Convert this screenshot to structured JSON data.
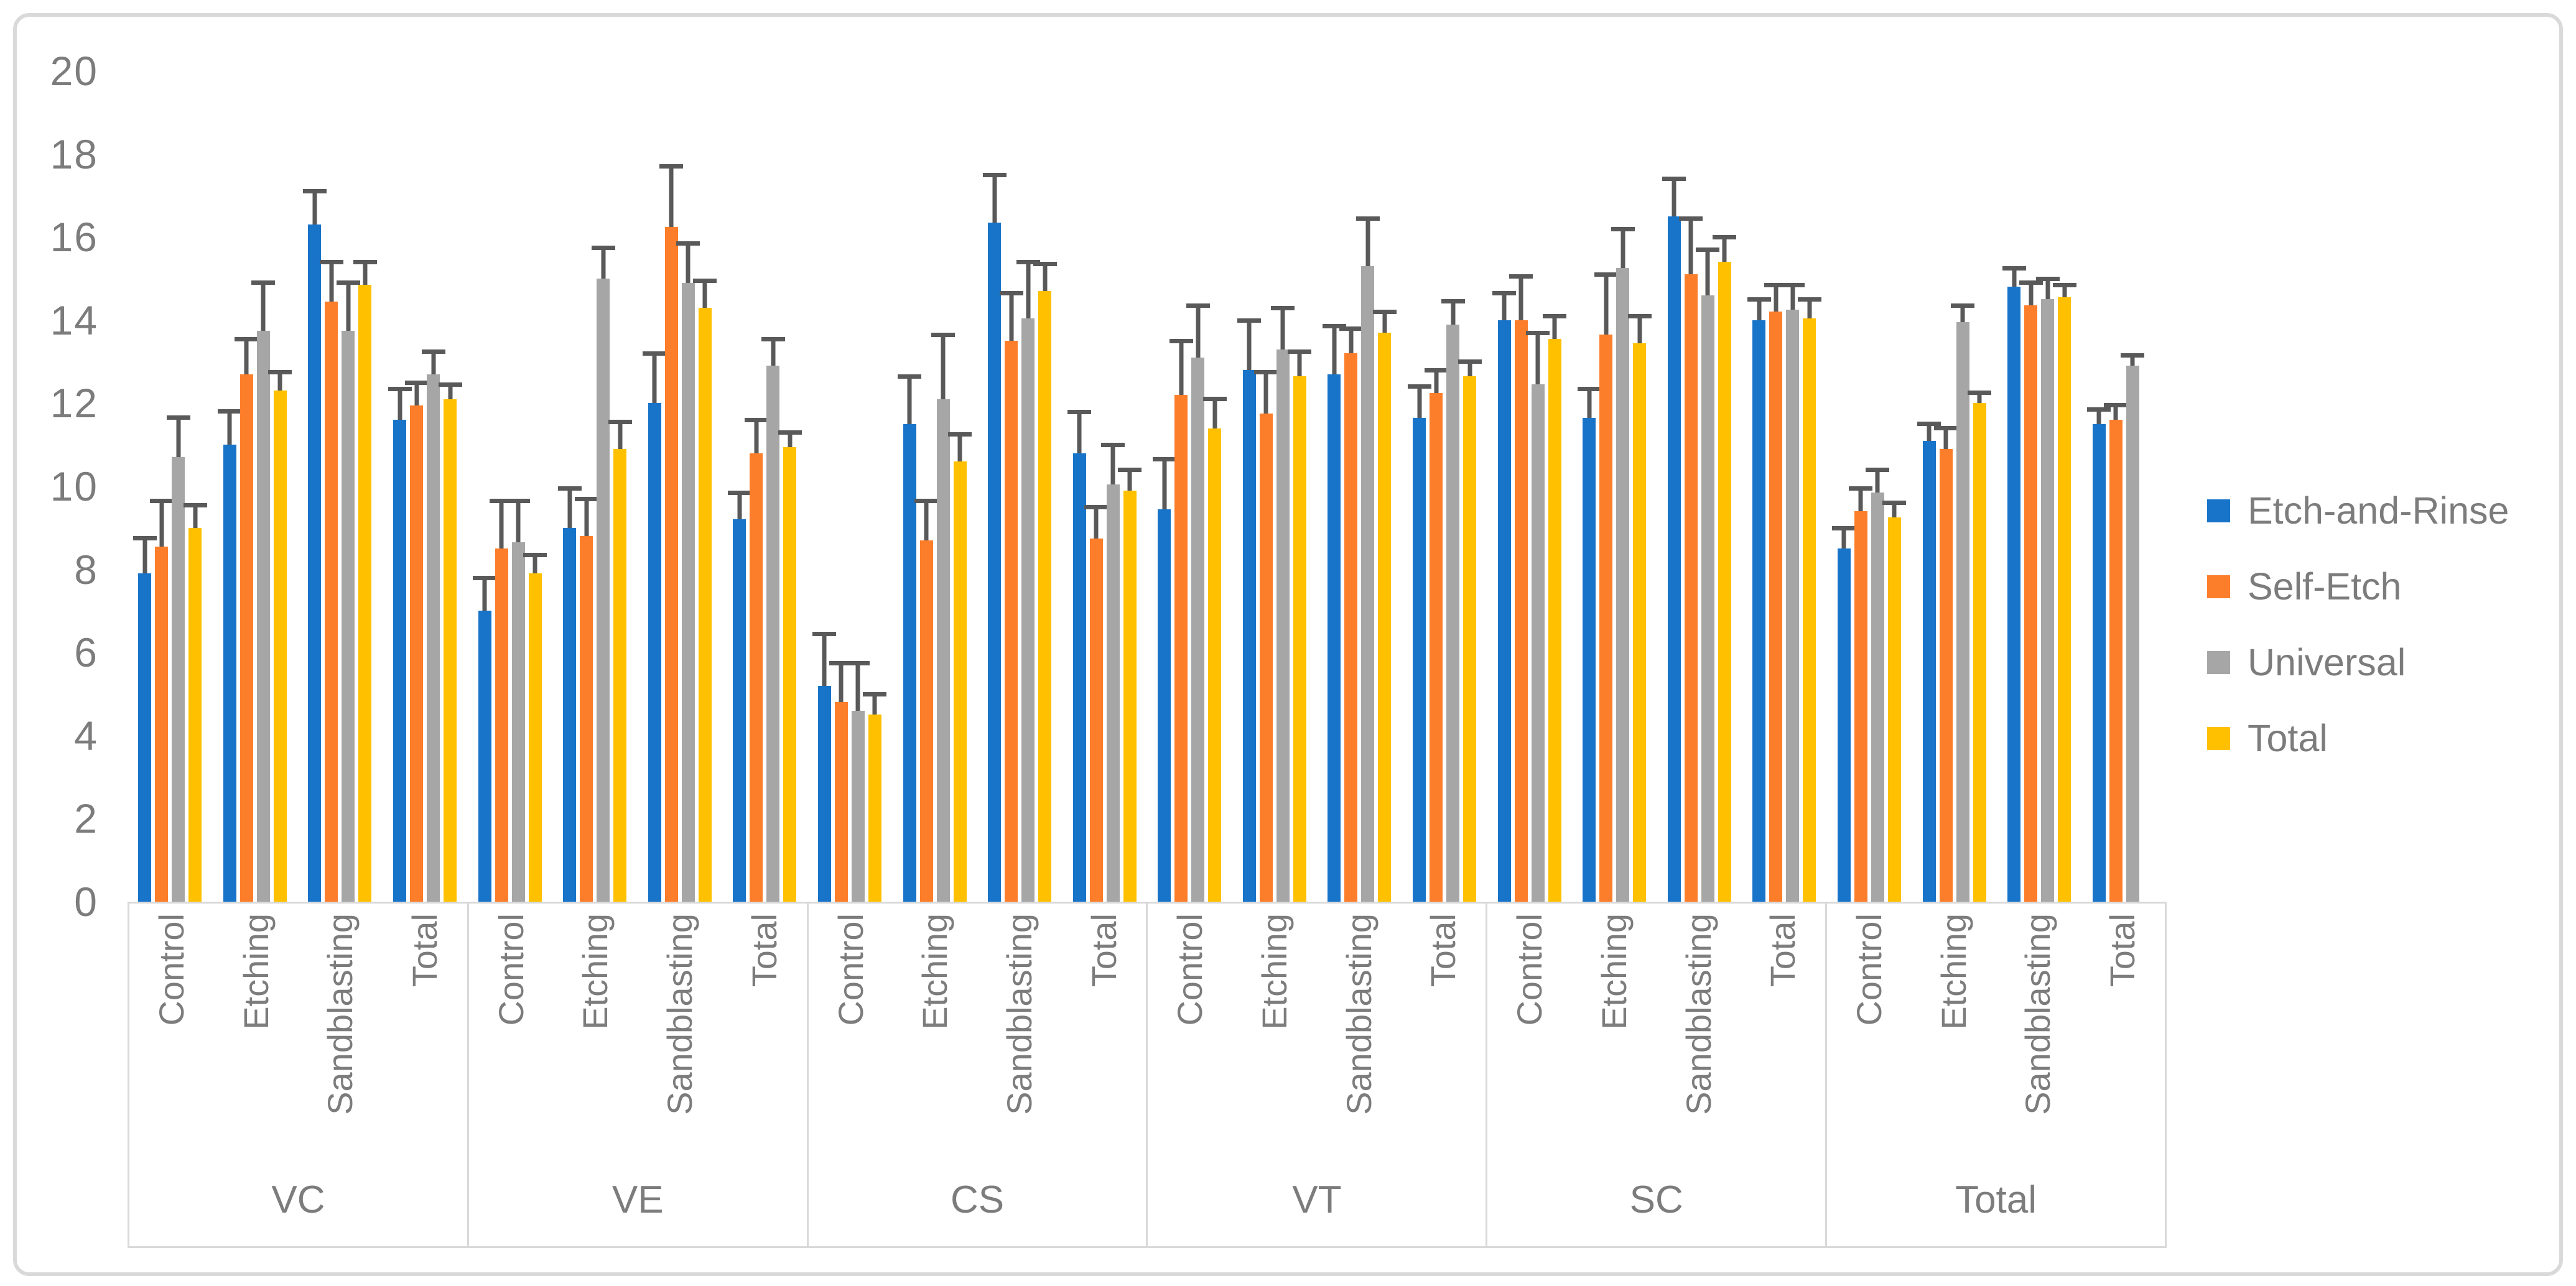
{
  "chart_data": {
    "type": "bar",
    "title": "",
    "xlabel": "",
    "ylabel": "",
    "ylim": [
      0,
      20
    ],
    "y_ticks": [
      0,
      2,
      4,
      6,
      8,
      10,
      12,
      14,
      16,
      18,
      20
    ],
    "grid": false,
    "legend_position": "right-middle",
    "error_bars": "plus-direction-only",
    "colors": {
      "etch_and_rinse": "#1874C9",
      "self_etch": "#FD7E2A",
      "universal": "#A6A6A6",
      "total": "#FFC000",
      "error_bar": "#595959",
      "axis_line": "#D9D9D9",
      "text": "#7C7C7C",
      "figure_border": "#D9D9D9"
    },
    "series": [
      {
        "name": "Etch-and-Rinse",
        "color": "#1874C9"
      },
      {
        "name": "Self-Etch",
        "color": "#FD7E2A"
      },
      {
        "name": "Universal",
        "color": "#A6A6A6"
      },
      {
        "name": "Total",
        "color": "#FFC000"
      }
    ],
    "subcategories": [
      "Control",
      "Etching",
      "Sandblasting",
      "Total"
    ],
    "groups": [
      {
        "label": "VC",
        "clusters": [
          {
            "label": "Control",
            "values": [
              7.9,
              8.55,
              10.7,
              9.0
            ],
            "errors": [
              0.9,
              1.15,
              1.0,
              0.6
            ]
          },
          {
            "label": "Etching",
            "values": [
              11.0,
              12.7,
              13.75,
              12.3
            ],
            "errors": [
              0.85,
              0.9,
              1.2,
              0.5
            ]
          },
          {
            "label": "Sandblasting",
            "values": [
              16.3,
              14.45,
              13.75,
              14.85
            ],
            "errors": [
              0.85,
              1.0,
              1.2,
              0.6
            ]
          },
          {
            "label": "Total",
            "values": [
              11.6,
              11.95,
              12.7,
              12.1
            ],
            "errors": [
              0.8,
              0.6,
              0.6,
              0.4
            ]
          }
        ]
      },
      {
        "label": "VE",
        "clusters": [
          {
            "label": "Control",
            "values": [
              7.0,
              8.5,
              8.65,
              7.9
            ],
            "errors": [
              0.85,
              1.2,
              1.05,
              0.5
            ]
          },
          {
            "label": "Etching",
            "values": [
              9.0,
              8.8,
              15.0,
              10.9
            ],
            "errors": [
              1.0,
              0.95,
              0.8,
              0.7
            ]
          },
          {
            "label": "Sandblasting",
            "values": [
              12.0,
              16.25,
              14.9,
              14.3
            ],
            "errors": [
              1.25,
              1.5,
              1.0,
              0.7
            ]
          },
          {
            "label": "Total",
            "values": [
              9.2,
              10.8,
              12.9,
              10.95
            ],
            "errors": [
              0.7,
              0.85,
              0.7,
              0.4
            ]
          }
        ]
      },
      {
        "label": "CS",
        "clusters": [
          {
            "label": "Control",
            "values": [
              5.2,
              4.8,
              4.6,
              4.5
            ],
            "errors": [
              1.3,
              1.0,
              1.2,
              0.55
            ]
          },
          {
            "label": "Etching",
            "values": [
              11.5,
              8.7,
              12.1,
              10.6
            ],
            "errors": [
              1.2,
              1.0,
              1.6,
              0.7
            ]
          },
          {
            "label": "Sandblasting",
            "values": [
              16.35,
              13.5,
              14.05,
              14.7
            ],
            "errors": [
              1.2,
              1.2,
              1.4,
              0.7
            ]
          },
          {
            "label": "Total",
            "values": [
              10.8,
              8.75,
              10.05,
              9.9
            ],
            "errors": [
              1.05,
              0.8,
              1.0,
              0.55
            ]
          }
        ]
      },
      {
        "label": "VT",
        "clusters": [
          {
            "label": "Control",
            "values": [
              9.45,
              12.2,
              13.1,
              11.4
            ],
            "errors": [
              1.25,
              1.35,
              1.3,
              0.75
            ]
          },
          {
            "label": "Etching",
            "values": [
              12.8,
              11.75,
              13.3,
              12.65
            ],
            "errors": [
              1.25,
              1.05,
              1.05,
              0.65
            ]
          },
          {
            "label": "Sandblasting",
            "values": [
              12.7,
              13.2,
              15.3,
              13.7
            ],
            "errors": [
              1.2,
              0.65,
              1.2,
              0.55
            ]
          },
          {
            "label": "Total",
            "values": [
              11.65,
              12.25,
              13.9,
              12.65
            ],
            "errors": [
              0.8,
              0.6,
              0.6,
              0.4
            ]
          }
        ]
      },
      {
        "label": "SC",
        "clusters": [
          {
            "label": "Control",
            "values": [
              14.0,
              14.0,
              12.45,
              13.55
            ],
            "errors": [
              0.7,
              1.1,
              1.3,
              0.6
            ]
          },
          {
            "label": "Etching",
            "values": [
              11.65,
              13.65,
              15.25,
              13.45
            ],
            "errors": [
              0.75,
              1.5,
              1.0,
              0.7
            ]
          },
          {
            "label": "Sandblasting",
            "values": [
              16.5,
              15.1,
              14.6,
              15.4
            ],
            "errors": [
              0.95,
              1.4,
              1.15,
              0.65
            ]
          },
          {
            "label": "Total",
            "values": [
              14.0,
              14.2,
              14.25,
              14.05
            ],
            "errors": [
              0.55,
              0.7,
              0.65,
              0.5
            ]
          }
        ]
      },
      {
        "label": "Total",
        "clusters": [
          {
            "label": "Control",
            "values": [
              8.5,
              9.4,
              9.85,
              9.25
            ],
            "errors": [
              0.55,
              0.6,
              0.6,
              0.4
            ]
          },
          {
            "label": "Etching",
            "values": [
              11.1,
              10.9,
              13.95,
              12.0
            ],
            "errors": [
              0.45,
              0.55,
              0.45,
              0.3
            ]
          },
          {
            "label": "Sandblasting",
            "values": [
              14.8,
              14.35,
              14.5,
              14.55
            ],
            "errors": [
              0.5,
              0.6,
              0.55,
              0.35
            ]
          },
          {
            "label": "Total",
            "values": [
              11.5,
              11.6,
              12.9,
              null
            ],
            "errors": [
              0.4,
              0.4,
              0.3,
              null
            ]
          }
        ]
      }
    ]
  }
}
